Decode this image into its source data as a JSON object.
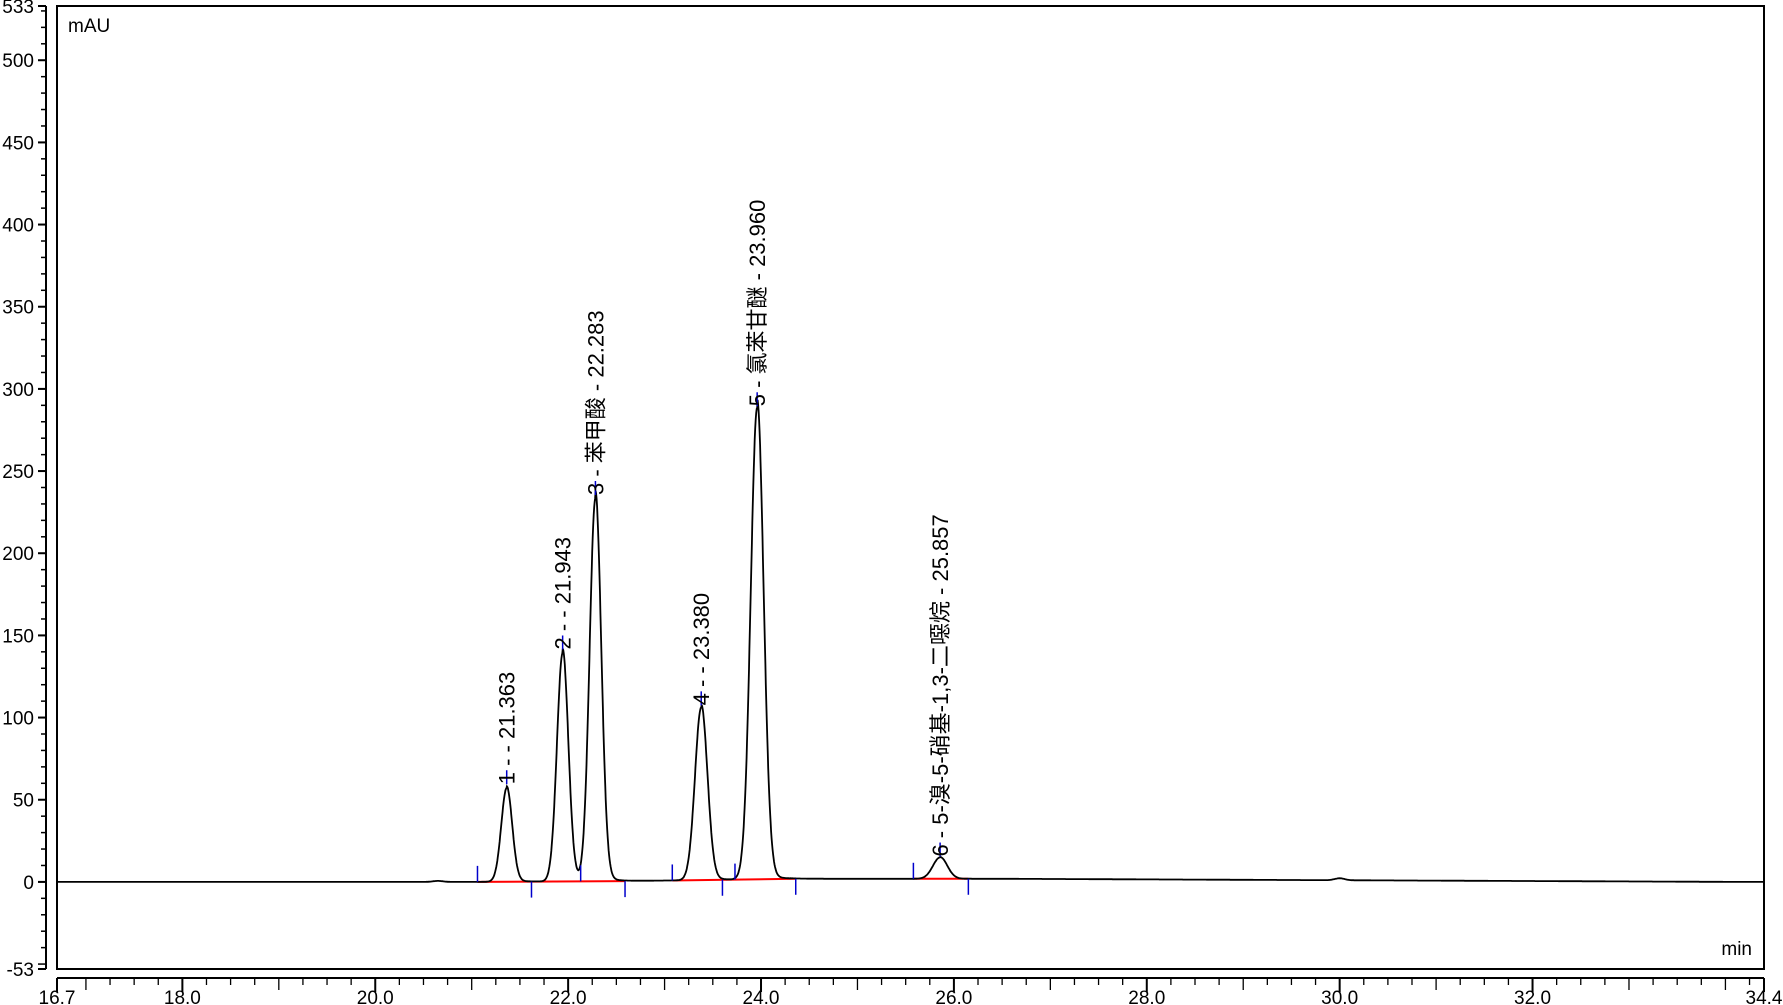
{
  "chart_data": {
    "type": "line",
    "title": "",
    "ylabel": "mAU",
    "xlabel": "min",
    "xlim": [
      16.7,
      34.4
    ],
    "ylim": [
      -53,
      533
    ],
    "x_ticks": [
      "16.7",
      "18.0",
      "20.0",
      "22.0",
      "24.0",
      "26.0",
      "28.0",
      "30.0",
      "32.0",
      "34.4"
    ],
    "x_tick_values": [
      16.7,
      18.0,
      20.0,
      22.0,
      24.0,
      26.0,
      28.0,
      30.0,
      32.0,
      34.4
    ],
    "y_ticks": [
      "533",
      "500",
      "450",
      "400",
      "350",
      "300",
      "250",
      "200",
      "150",
      "100",
      "50",
      "0",
      "-53"
    ],
    "y_tick_values": [
      533,
      500,
      450,
      400,
      350,
      300,
      250,
      200,
      150,
      100,
      50,
      0,
      -53
    ],
    "grid": false,
    "trace_color": "#000000",
    "baseline_color": "#ff0000",
    "marker_color": "#0000cc",
    "peaks": [
      {
        "number": "1",
        "rt": 21.363,
        "height": 57,
        "label": "1 -  - 21.363"
      },
      {
        "number": "2",
        "rt": 21.943,
        "height": 139,
        "label": "2 -  - 21.943"
      },
      {
        "number": "3",
        "rt": 22.283,
        "height": 233,
        "label": "3 - 苯甲酸 - 22.283"
      },
      {
        "number": "4",
        "rt": 23.38,
        "height": 105,
        "label": "4 -  - 23.380"
      },
      {
        "number": "5",
        "rt": 23.96,
        "height": 287,
        "label": "5 - 氯苯甘醚 - 23.960"
      },
      {
        "number": "6",
        "rt": 25.857,
        "height": 13,
        "label": "6 - 5-溴-5-硝基-1,3-二噁烷 - 25.857"
      }
    ],
    "baseline_segments": [
      [
        21.06,
        21.62
      ],
      [
        21.62,
        22.59
      ],
      [
        23.08,
        23.73
      ],
      [
        23.73,
        24.36
      ],
      [
        25.58,
        26.15
      ]
    ],
    "integration_markers": [
      21.06,
      21.62,
      22.13,
      22.59,
      23.08,
      23.6,
      23.73,
      24.36,
      25.58,
      26.15
    ]
  }
}
